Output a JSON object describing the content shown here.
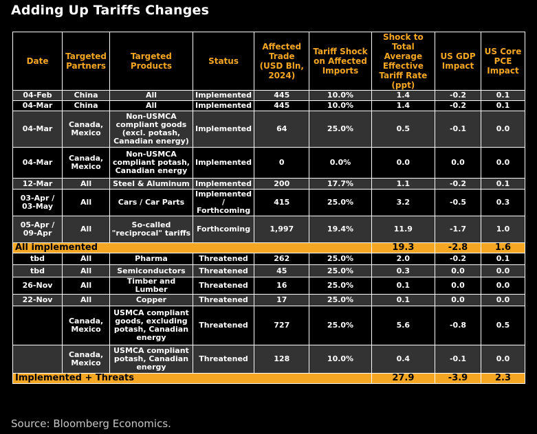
{
  "title": "Adding Up Tariffs Changes",
  "source": "Source: Bloomberg Economics.",
  "headers": {
    "date": "Date",
    "partners": "Targeted Partners",
    "products": "Targeted Products",
    "status": "Status",
    "trade": "Affected Trade (USD Bln, 2024)",
    "shock": "Tariff Shock on Affected Imports",
    "total_shock": "Shock to Total Average Effective Tariff Rate (ppt)",
    "gdp": "US GDP Impact",
    "pce": "US Core PCE Impact"
  },
  "rows": [
    {
      "date": "04-Feb",
      "partners": "China",
      "products": "All",
      "status": "Implemented",
      "trade": "445",
      "shock": "10.0%",
      "total": "1.4",
      "gdp": "-0.2",
      "pce": "0.1"
    },
    {
      "date": "04-Mar",
      "partners": "China",
      "products": "All",
      "status": "Implemented",
      "trade": "445",
      "shock": "10.0%",
      "total": "1.4",
      "gdp": "-0.2",
      "pce": "0.1"
    },
    {
      "date": "04-Mar",
      "partners": "Canada, Mexico",
      "products": "Non-USMCA compliant goods (excl. potash, Canadian energy)",
      "status": "Implemented",
      "trade": "64",
      "shock": "25.0%",
      "total": "0.5",
      "gdp": "-0.1",
      "pce": "0.0"
    },
    {
      "date": "04-Mar",
      "partners": "Canada, Mexico",
      "products": "Non-USMCA compliant potash, Canadian energy",
      "status": "Implemented",
      "trade": "0",
      "shock": "0.0%",
      "total": "0.0",
      "gdp": "0.0",
      "pce": "0.0"
    },
    {
      "date": "12-Mar",
      "partners": "All",
      "products": "Steel & Aluminum",
      "status": "Implemented",
      "trade": "200",
      "shock": "17.7%",
      "total": "1.1",
      "gdp": "-0.2",
      "pce": "0.1"
    },
    {
      "date": "03-Apr / 03-May",
      "partners": "All",
      "products": "Cars / Car Parts",
      "status": "Implemented / Forthcoming",
      "trade": "415",
      "shock": "25.0%",
      "total": "3.2",
      "gdp": "-0.5",
      "pce": "0.3"
    },
    {
      "date": "05-Apr / 09-Apr",
      "partners": "All",
      "products": "So-called \"reciprocal\" tariffs",
      "status": "Forthcoming",
      "trade": "1,997",
      "shock": "19.4%",
      "total": "11.9",
      "gdp": "-1.7",
      "pce": "1.0"
    }
  ],
  "subtotal": {
    "label": "All implemented",
    "total": "19.3",
    "gdp": "-2.8",
    "pce": "1.6"
  },
  "rows2": [
    {
      "date": "tbd",
      "partners": "All",
      "products": "Pharma",
      "status": "Threatened",
      "trade": "262",
      "shock": "25.0%",
      "total": "2.0",
      "gdp": "-0.2",
      "pce": "0.1"
    },
    {
      "date": "tbd",
      "partners": "All",
      "products": "Semiconductors",
      "status": "Threatened",
      "trade": "45",
      "shock": "25.0%",
      "total": "0.3",
      "gdp": "0.0",
      "pce": "0.0"
    },
    {
      "date": "26-Nov",
      "partners": "All",
      "products": "Timber and Lumber",
      "status": "Threatened",
      "trade": "16",
      "shock": "25.0%",
      "total": "0.1",
      "gdp": "0.0",
      "pce": "0.0"
    },
    {
      "date": "22-Nov",
      "partners": "All",
      "products": "Copper",
      "status": "Threatened",
      "trade": "17",
      "shock": "25.0%",
      "total": "0.1",
      "gdp": "0.0",
      "pce": "0.0"
    },
    {
      "date": "",
      "partners": "Canada, Mexico",
      "products": "USMCA compliant goods, excluding potash, Canadian energy",
      "status": "Threatened",
      "trade": "727",
      "shock": "25.0%",
      "total": "5.6",
      "gdp": "-0.8",
      "pce": "0.5"
    },
    {
      "date": "",
      "partners": "Canada, Mexico",
      "products": "USMCA compliant potash, Canadian energy",
      "status": "Threatened",
      "trade": "128",
      "shock": "10.0%",
      "total": "0.4",
      "gdp": "-0.1",
      "pce": "0.0"
    }
  ],
  "grandtotal": {
    "label": "Implemented + Threats",
    "total": "27.9",
    "gdp": "-3.9",
    "pce": "2.3"
  },
  "colors": {
    "accent": "#f5a623",
    "row_gray": "#333333",
    "background": "#000000"
  }
}
